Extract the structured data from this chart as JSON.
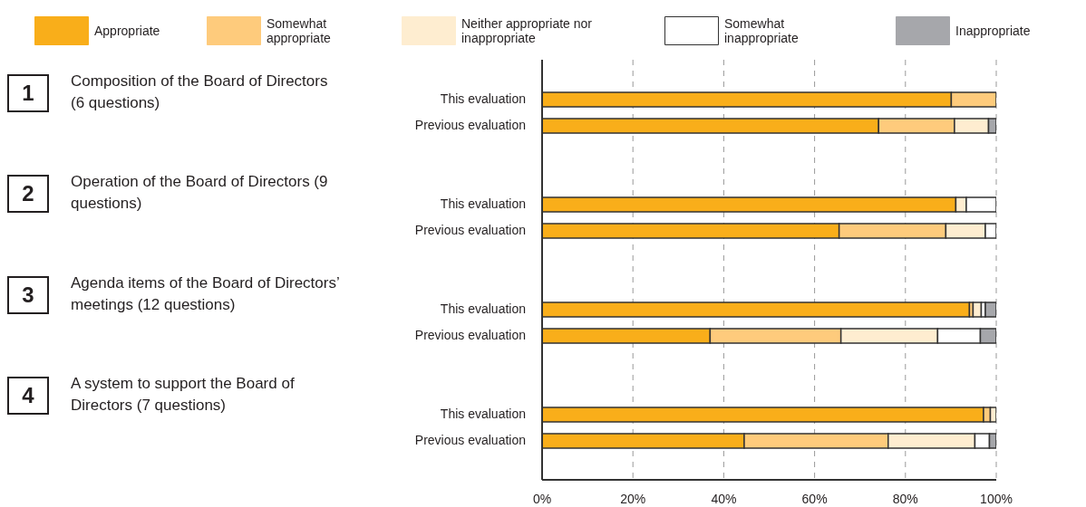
{
  "chart_data": {
    "type": "bar",
    "orientation": "horizontal",
    "stacked": true,
    "legend": "top",
    "grid": "x",
    "line_style": "dashed",
    "categories": [
      null,
      "This evaluation",
      "Previous evaluation",
      null,
      null,
      "This evaluation",
      "Previous evaluation",
      null,
      null,
      "This evaluation",
      "Previous evaluation",
      null,
      null,
      "This evaluation",
      "Previous evaluation",
      null
    ],
    "series": [
      {
        "name": "Appropriate",
        "color": "#f9ae1a",
        "values": [
          null,
          90.1,
          74.1,
          null,
          null,
          91.1,
          65.4,
          null,
          null,
          94.1,
          37.0,
          null,
          null,
          97.2,
          44.5,
          null
        ]
      },
      {
        "name": "Somewhat appropriate",
        "color": "#fecb7c",
        "values": [
          null,
          9.9,
          16.7,
          null,
          null,
          0,
          23.5,
          null,
          null,
          0.8,
          28.8,
          null,
          null,
          1.5,
          31.7,
          null
        ]
      },
      {
        "name": "Neither appropriate nor inappropriate",
        "color": "#feedd0",
        "values": [
          null,
          0,
          7.5,
          null,
          null,
          2.3,
          8.7,
          null,
          null,
          1.8,
          21.3,
          null,
          null,
          1.3,
          19.1,
          null
        ]
      },
      {
        "name": "Somewhat inappropriate",
        "color": "#ffffff",
        "values": [
          null,
          0,
          0,
          null,
          null,
          6.6,
          2.4,
          null,
          null,
          0.9,
          9.4,
          null,
          null,
          0,
          3.2,
          null
        ]
      },
      {
        "name": "Inappropriate",
        "color": "#a6a7ab",
        "values": [
          null,
          0,
          1.7,
          null,
          null,
          0,
          0,
          null,
          null,
          2.4,
          3.5,
          null,
          null,
          0,
          1.5,
          null
        ]
      }
    ],
    "xlim": [
      0,
      100
    ],
    "xticks": [
      {
        "value": 0,
        "label": "0%"
      },
      {
        "value": 20,
        "label": "20%"
      },
      {
        "value": 40,
        "label": "40%"
      },
      {
        "value": 60,
        "label": "60%"
      },
      {
        "value": 80,
        "label": "80%"
      },
      {
        "value": 100,
        "label": "100%"
      }
    ],
    "annotations": [
      "1",
      "Composition of the Board of Directors (6 questions)",
      "2",
      "Operation of the Board of Directors (9 questions)",
      "3",
      "Agenda items of the Board of Directors’ meetings (12 questions)",
      "4",
      "A system to support the Board of Directors (7 questions)"
    ]
  }
}
